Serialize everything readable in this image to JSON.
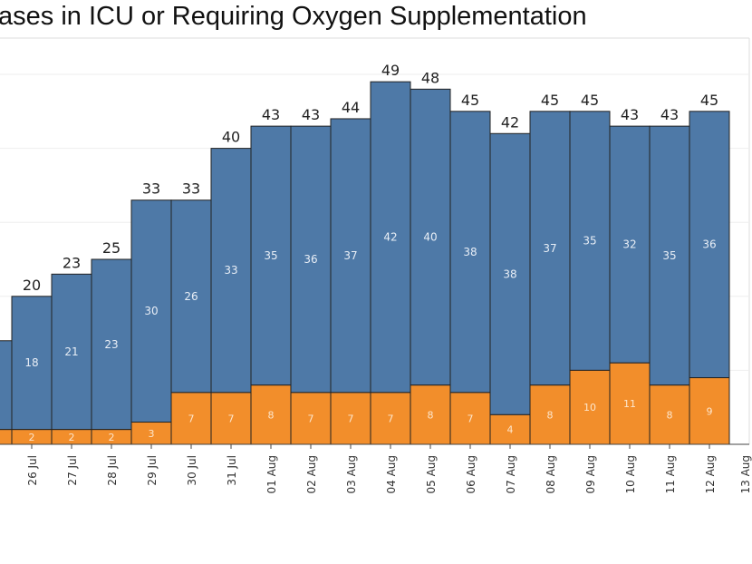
{
  "chart_data": {
    "type": "bar",
    "stacked": true,
    "title": "ases in ICU or Requiring Oxygen Supplementation",
    "xlabel": "",
    "ylabel": "",
    "ylim": [
      0,
      55
    ],
    "grid": true,
    "categories": [
      "26 Jul",
      "27 Jul",
      "28 Jul",
      "29 Jul",
      "30 Jul",
      "31 Jul",
      "01 Aug",
      "02 Aug",
      "03 Aug",
      "04 Aug",
      "05 Aug",
      "06 Aug",
      "07 Aug",
      "08 Aug",
      "09 Aug",
      "10 Aug",
      "11 Aug",
      "12 Aug"
    ],
    "extra_tick_labels": [
      "13 Aug"
    ],
    "series": [
      {
        "color": "#f28e2b",
        "values": [
          2,
          2,
          2,
          3,
          7,
          7,
          8,
          7,
          7,
          7,
          8,
          7,
          4,
          8,
          10,
          11,
          8,
          9
        ]
      },
      {
        "color": "#4e79a7",
        "values": [
          18,
          21,
          23,
          30,
          26,
          33,
          35,
          36,
          37,
          42,
          40,
          38,
          38,
          37,
          35,
          32,
          35,
          36
        ]
      }
    ],
    "totals": [
      20,
      23,
      25,
      33,
      33,
      40,
      43,
      43,
      44,
      49,
      48,
      45,
      42,
      45,
      45,
      43,
      43,
      45
    ],
    "partial_left_bar": {
      "total": 14,
      "orange": 2
    }
  }
}
